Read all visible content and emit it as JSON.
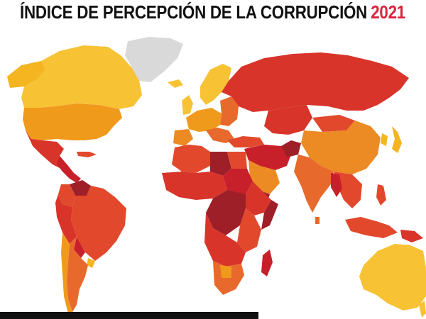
{
  "title": {
    "text": "ÍNDICE DE PERCEPCIÓN DE LA CORRUPCIÓN",
    "year": "2021"
  },
  "colors": {
    "year": "#d7263d",
    "very_clean": "#f7c234",
    "clean": "#f5b520",
    "fairly_clean": "#f09a1c",
    "moderate": "#ec8a24",
    "orange": "#e8692c",
    "red_orange": "#e2492c",
    "red": "#d8342a",
    "deep_red": "#c8202a",
    "darkest_red": "#9e1f28",
    "no_data": "#d9d9d9",
    "background": "#ffffff"
  }
}
